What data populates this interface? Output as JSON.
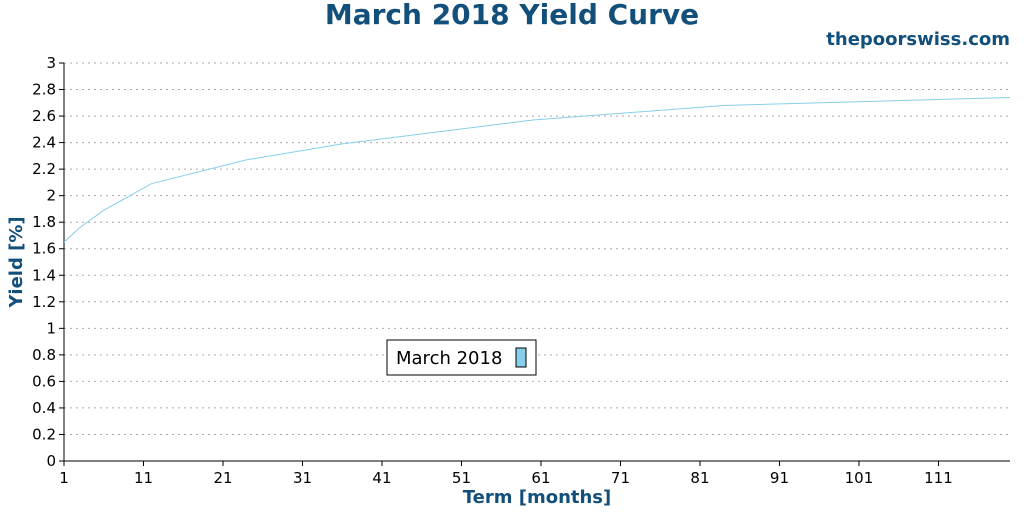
{
  "header": {
    "title": "March 2018 Yield Curve",
    "watermark": "thepoorswiss.com"
  },
  "chart_data": {
    "type": "line",
    "title": "March 2018 Yield Curve",
    "xlabel": "Term [months]",
    "ylabel": "Yield [%]",
    "xlim": [
      1,
      120
    ],
    "ylim": [
      0,
      3
    ],
    "xticks": [
      1,
      11,
      21,
      31,
      41,
      51,
      61,
      71,
      81,
      91,
      101,
      111
    ],
    "yticks": [
      0,
      0.2,
      0.4,
      0.6,
      0.8,
      1,
      1.2,
      1.4,
      1.6,
      1.8,
      2,
      2.2,
      2.4,
      2.6,
      2.8,
      3
    ],
    "grid": true,
    "legend_position": "center",
    "series": [
      {
        "name": "March 2018",
        "color": "#87ceeb",
        "x": [
          1,
          3,
          6,
          12,
          24,
          36,
          60,
          84,
          120
        ],
        "y": [
          1.65,
          1.76,
          1.89,
          2.09,
          2.27,
          2.39,
          2.57,
          2.68,
          2.74
        ]
      }
    ]
  }
}
